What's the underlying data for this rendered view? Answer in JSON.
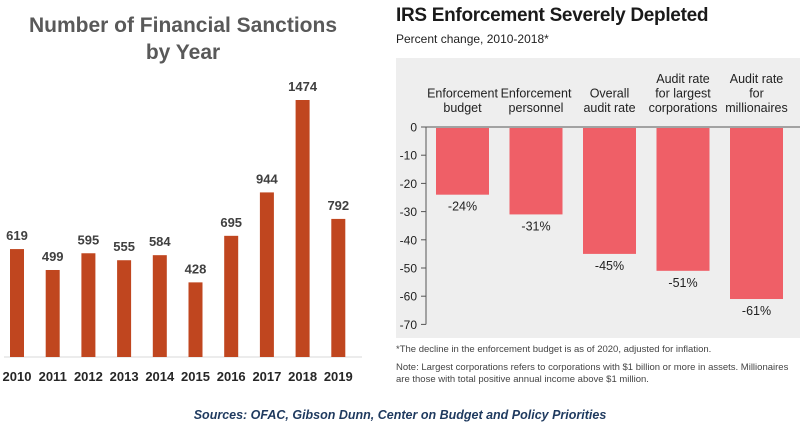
{
  "left": {
    "title_line1": "Number of Financial Sanctions",
    "title_line2": "by Year",
    "bar_color": "#c0461f",
    "label_color": "#404040"
  },
  "right": {
    "title": "IRS Enforcement Severely Depleted",
    "subtitle": "Percent change, 2010-2018*",
    "note1": "*The decline in the enforcement budget is as of 2020, adjusted for inflation.",
    "note2_line1": "Note: Largest corporations refers to corporations with $1 billion or more in assets. Millionaires",
    "note2_line2": "are those with total positive annual income above $1 million.",
    "bar_color": "#ef5f67",
    "panel_color": "#eeeeee"
  },
  "sources": "Sources: OFAC, Gibson Dunn, Center on Budget and Policy Priorities",
  "chart_data": [
    {
      "type": "bar",
      "title": "Number of Financial Sanctions by Year",
      "categories": [
        "2010",
        "2011",
        "2012",
        "2013",
        "2014",
        "2015",
        "2016",
        "2017",
        "2018",
        "2019"
      ],
      "values": [
        619,
        499,
        595,
        555,
        584,
        428,
        695,
        944,
        1474,
        792
      ],
      "xlabel": "",
      "ylabel": "",
      "ylim": [
        0,
        1550
      ],
      "grid": false,
      "legend": "none"
    },
    {
      "type": "bar",
      "title": "IRS Enforcement Severely Depleted",
      "subtitle": "Percent change, 2010-2018*",
      "categories": [
        [
          "Enforcement",
          "budget"
        ],
        [
          "Enforcement",
          "personnel"
        ],
        [
          "Overall",
          "audit rate"
        ],
        [
          "Audit rate",
          "for largest",
          "corporations"
        ],
        [
          "Audit rate",
          "for",
          "millionaires"
        ]
      ],
      "values": [
        -24,
        -31,
        -45,
        -51,
        -61
      ],
      "value_labels": [
        "-24%",
        "-31%",
        "-45%",
        "-51%",
        "-61%"
      ],
      "yticks": [
        0,
        -10,
        -20,
        -30,
        -40,
        -50,
        -60,
        -70
      ],
      "ylim": [
        -70,
        0
      ],
      "grid": false,
      "legend": "none"
    }
  ]
}
